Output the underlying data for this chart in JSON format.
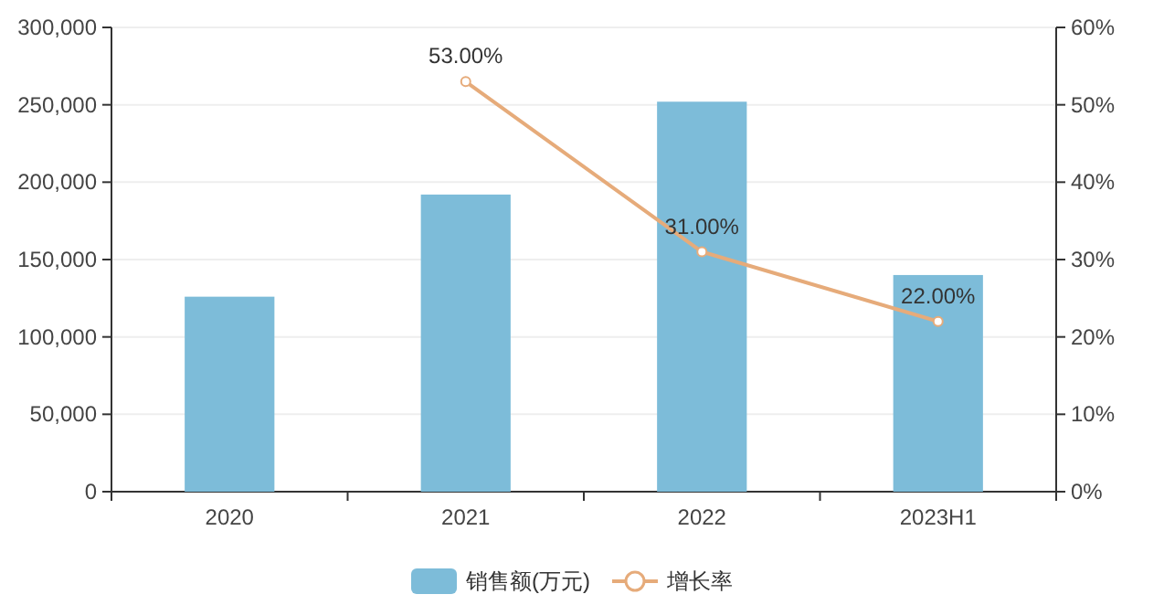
{
  "chart_data": {
    "type": "bar",
    "categories": [
      "2020",
      "2021",
      "2022",
      "2023H1"
    ],
    "series": [
      {
        "name": "销售额(万元)",
        "color": "#7dbcd9",
        "values": [
          126000,
          192000,
          252000,
          140000
        ]
      },
      {
        "name": "增长率",
        "type": "line",
        "axis": "y2",
        "color": "#e6ab7a",
        "marker": "circle",
        "values": [
          null,
          53,
          31,
          22
        ],
        "value_labels": [
          null,
          "53.00%",
          "31.00%",
          "22.00%"
        ]
      }
    ],
    "ylim": [
      0,
      300000
    ],
    "yticks": [
      0,
      {
        "value": 50000,
        "label": "50,000"
      },
      {
        "value": 100000,
        "label": "100,000"
      },
      {
        "value": 150000,
        "label": "150,000"
      },
      {
        "value": 200000,
        "label": "200,000"
      },
      {
        "value": 250000,
        "label": "250,000"
      },
      {
        "value": 300000,
        "label": "300,000"
      }
    ],
    "y2lim": [
      0,
      60
    ],
    "y2ticks": [
      {
        "value": 0,
        "label": "0%"
      },
      {
        "value": 10,
        "label": "10%"
      },
      {
        "value": 20,
        "label": "20%"
      },
      {
        "value": 30,
        "label": "30%"
      },
      {
        "value": 40,
        "label": "40%"
      },
      {
        "value": 50,
        "label": "50%"
      },
      {
        "value": 60,
        "label": "60%"
      }
    ],
    "grid": "y",
    "legend": "bottom"
  }
}
